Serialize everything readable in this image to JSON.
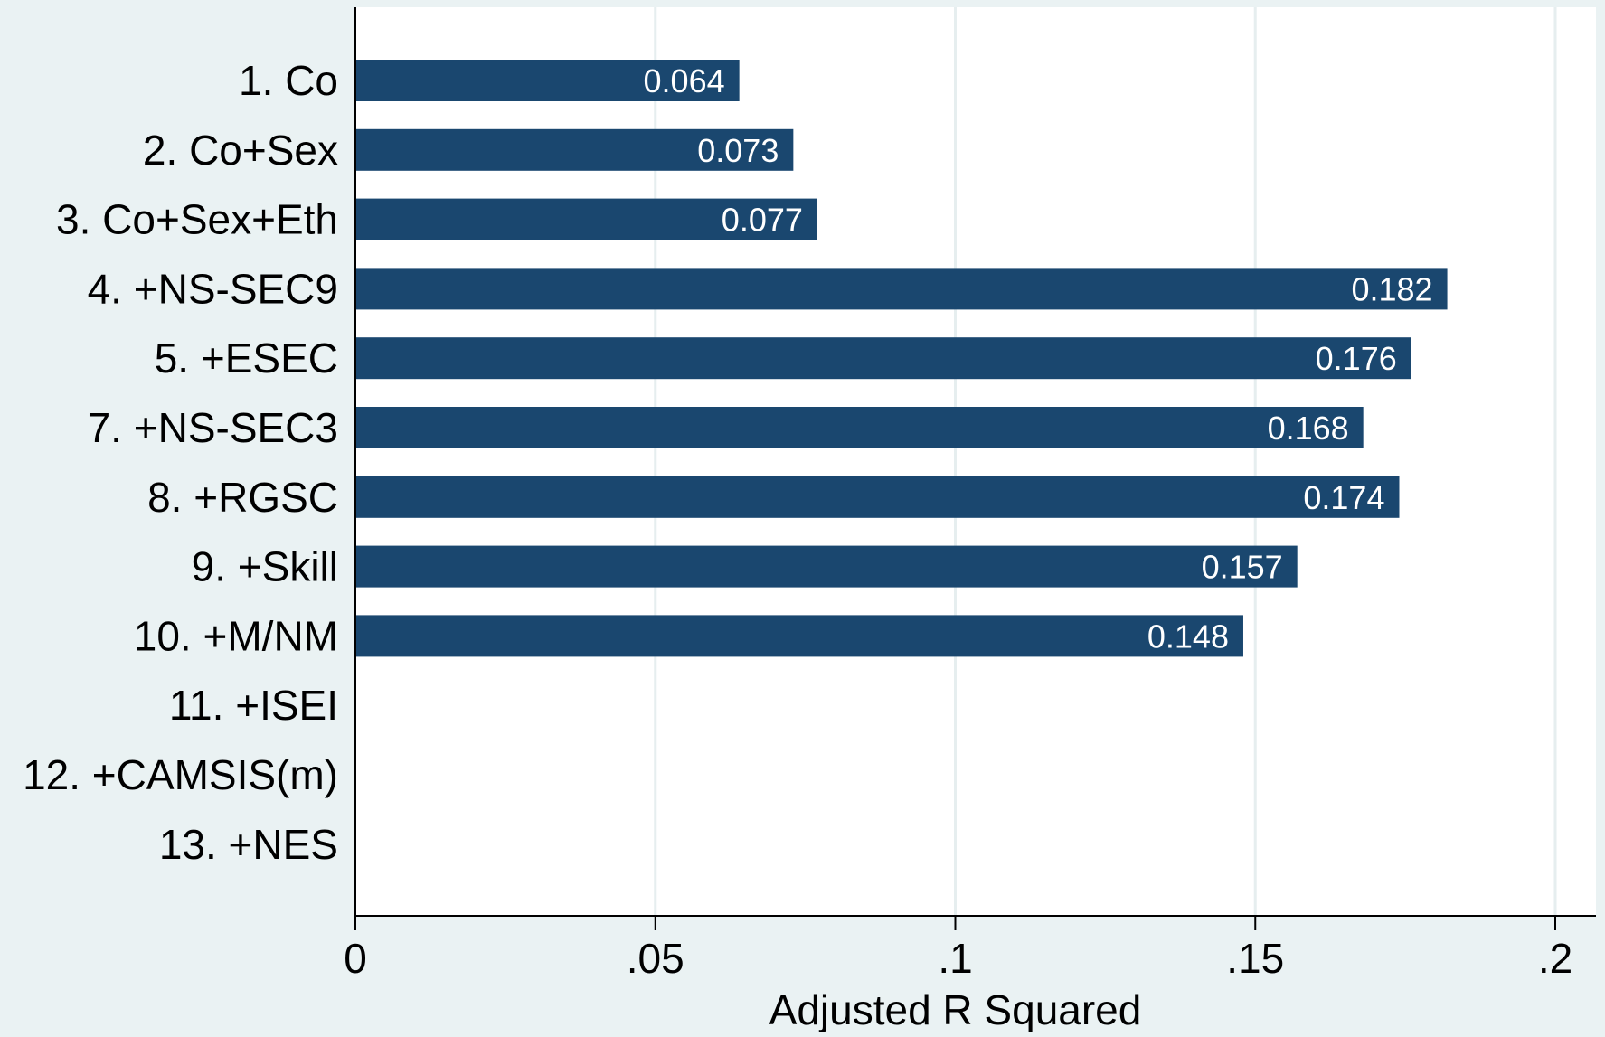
{
  "chart_data": {
    "type": "bar",
    "orientation": "horizontal",
    "title": "",
    "xlabel": "Adjusted R Squared",
    "ylabel": "",
    "categories": [
      "1. Co",
      "2. Co+Sex",
      "3. Co+Sex+Eth",
      "4. +NS-SEC9",
      "5. +ESEC",
      "7. +NS-SEC3",
      "8. +RGSC",
      "9. +Skill",
      "10. +M/NM",
      "11. +ISEI",
      "12. +CAMSIS(m)",
      "13. +NES"
    ],
    "values": [
      0.064,
      0.073,
      0.077,
      0.182,
      0.176,
      0.168,
      0.174,
      0.157,
      0.148,
      null,
      null,
      null
    ],
    "value_labels": [
      "0.064",
      "0.073",
      "0.077",
      "0.182",
      "0.176",
      "0.168",
      "0.174",
      "0.157",
      "0.148",
      "",
      "",
      ""
    ],
    "xlim": [
      0,
      0.2
    ],
    "xticks": [
      0,
      0.05,
      0.1,
      0.15,
      0.2
    ],
    "xtick_labels": [
      "0",
      ".05",
      ".1",
      ".15",
      ".2"
    ],
    "grid": true,
    "legend": "none",
    "colors": {
      "bar": "#1a476f",
      "background": "#eaf2f3",
      "plot_background": "#ffffff",
      "grid": "#e6eeef",
      "axis": "#000000",
      "bar_label": "#ffffff"
    }
  }
}
